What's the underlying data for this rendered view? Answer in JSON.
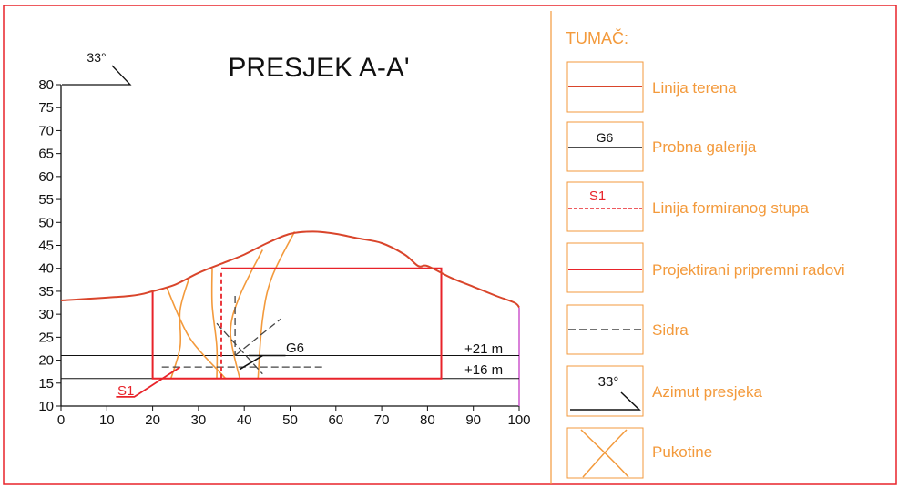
{
  "title": "PRESJEK A-A'",
  "azimuth_label": "33°",
  "x_ticks": [
    0,
    10,
    20,
    30,
    40,
    50,
    60,
    70,
    80,
    90,
    100
  ],
  "y_ticks": [
    10,
    15,
    20,
    25,
    30,
    35,
    40,
    45,
    50,
    55,
    60,
    65,
    70,
    75,
    80
  ],
  "annotations": {
    "level_21": "+21 m",
    "level_16": "+16 m",
    "gallery": "G6",
    "pillar": "S1"
  },
  "colors": {
    "terrain": "#d9452b",
    "planned_works": "#e8232a",
    "pillar": "#e8232a",
    "gallery": "#111111",
    "anchors": "#444444",
    "cracks": "#f39a3c",
    "legend_text": "#f39a3c",
    "border": "#e8232a",
    "axis_right": "#cc55cc"
  },
  "legend": {
    "title": "TUMAČ:",
    "items": [
      {
        "key": "terrain",
        "label": "Linija terena"
      },
      {
        "key": "gallery",
        "label": "Probna galerija",
        "symbol_text": "G6"
      },
      {
        "key": "pillar",
        "label": "Linija formiranog stupa",
        "symbol_text": "S1"
      },
      {
        "key": "planned_works",
        "label": "Projektirani pripremni radovi"
      },
      {
        "key": "anchors",
        "label": "Sidra"
      },
      {
        "key": "azimuth",
        "label": "Azimut presjeka",
        "symbol_text": "33°"
      },
      {
        "key": "cracks",
        "label": "Pukotine"
      }
    ]
  },
  "chart_data": {
    "type": "cross-section",
    "title": "PRESJEK A-A'",
    "xlim": [
      0,
      100
    ],
    "ylim": [
      10,
      80
    ],
    "terrain": [
      [
        0,
        33
      ],
      [
        15,
        34
      ],
      [
        20,
        35
      ],
      [
        25,
        36.5
      ],
      [
        30,
        39
      ],
      [
        35,
        41
      ],
      [
        40,
        43
      ],
      [
        45,
        45.5
      ],
      [
        50,
        47.5
      ],
      [
        55,
        48
      ],
      [
        60,
        47.5
      ],
      [
        65,
        46.5
      ],
      [
        70,
        45.5
      ],
      [
        75,
        43
      ],
      [
        78,
        40.5
      ],
      [
        80,
        40.5
      ],
      [
        85,
        38
      ],
      [
        90,
        36
      ],
      [
        95,
        34
      ],
      [
        99,
        32.5
      ],
      [
        100,
        31.5
      ]
    ],
    "planned_works": [
      [
        [
          20,
          35
        ],
        [
          20,
          16
        ],
        [
          83,
          16
        ],
        [
          83,
          40
        ],
        [
          35,
          40
        ]
      ]
    ],
    "pillar": [
      [
        [
          12,
          12
        ],
        [
          16,
          12
        ],
        [
          26,
          18.5
        ]
      ],
      [
        [
          35,
          16
        ],
        [
          35,
          39
        ]
      ]
    ],
    "gallery": [
      [
        [
          41,
          21
        ],
        [
          44,
          21
        ],
        [
          49,
          21
        ]
      ]
    ],
    "anchors": [
      [
        [
          22,
          18.5
        ],
        [
          57,
          18.5
        ]
      ],
      [
        [
          34,
          28
        ],
        [
          44,
          17
        ]
      ],
      [
        [
          38,
          34
        ],
        [
          38,
          21
        ]
      ],
      [
        [
          38,
          21
        ],
        [
          48,
          29
        ]
      ]
    ],
    "cracks": [
      [
        [
          23,
          36
        ],
        [
          28,
          25
        ],
        [
          35,
          17
        ],
        [
          36,
          16
        ]
      ],
      [
        [
          28,
          38
        ],
        [
          26,
          31
        ],
        [
          26,
          23
        ],
        [
          24,
          16
        ]
      ],
      [
        [
          33,
          40
        ],
        [
          33,
          32
        ],
        [
          34,
          23
        ],
        [
          34,
          16
        ]
      ],
      [
        [
          44,
          44
        ],
        [
          39,
          34
        ],
        [
          37,
          26
        ],
        [
          39,
          16
        ]
      ],
      [
        [
          51,
          48
        ],
        [
          46,
          38
        ],
        [
          44,
          29
        ],
        [
          43,
          16
        ]
      ]
    ],
    "levels": [
      {
        "y": 21,
        "label": "+21 m"
      },
      {
        "y": 16,
        "label": "+16 m"
      }
    ]
  }
}
